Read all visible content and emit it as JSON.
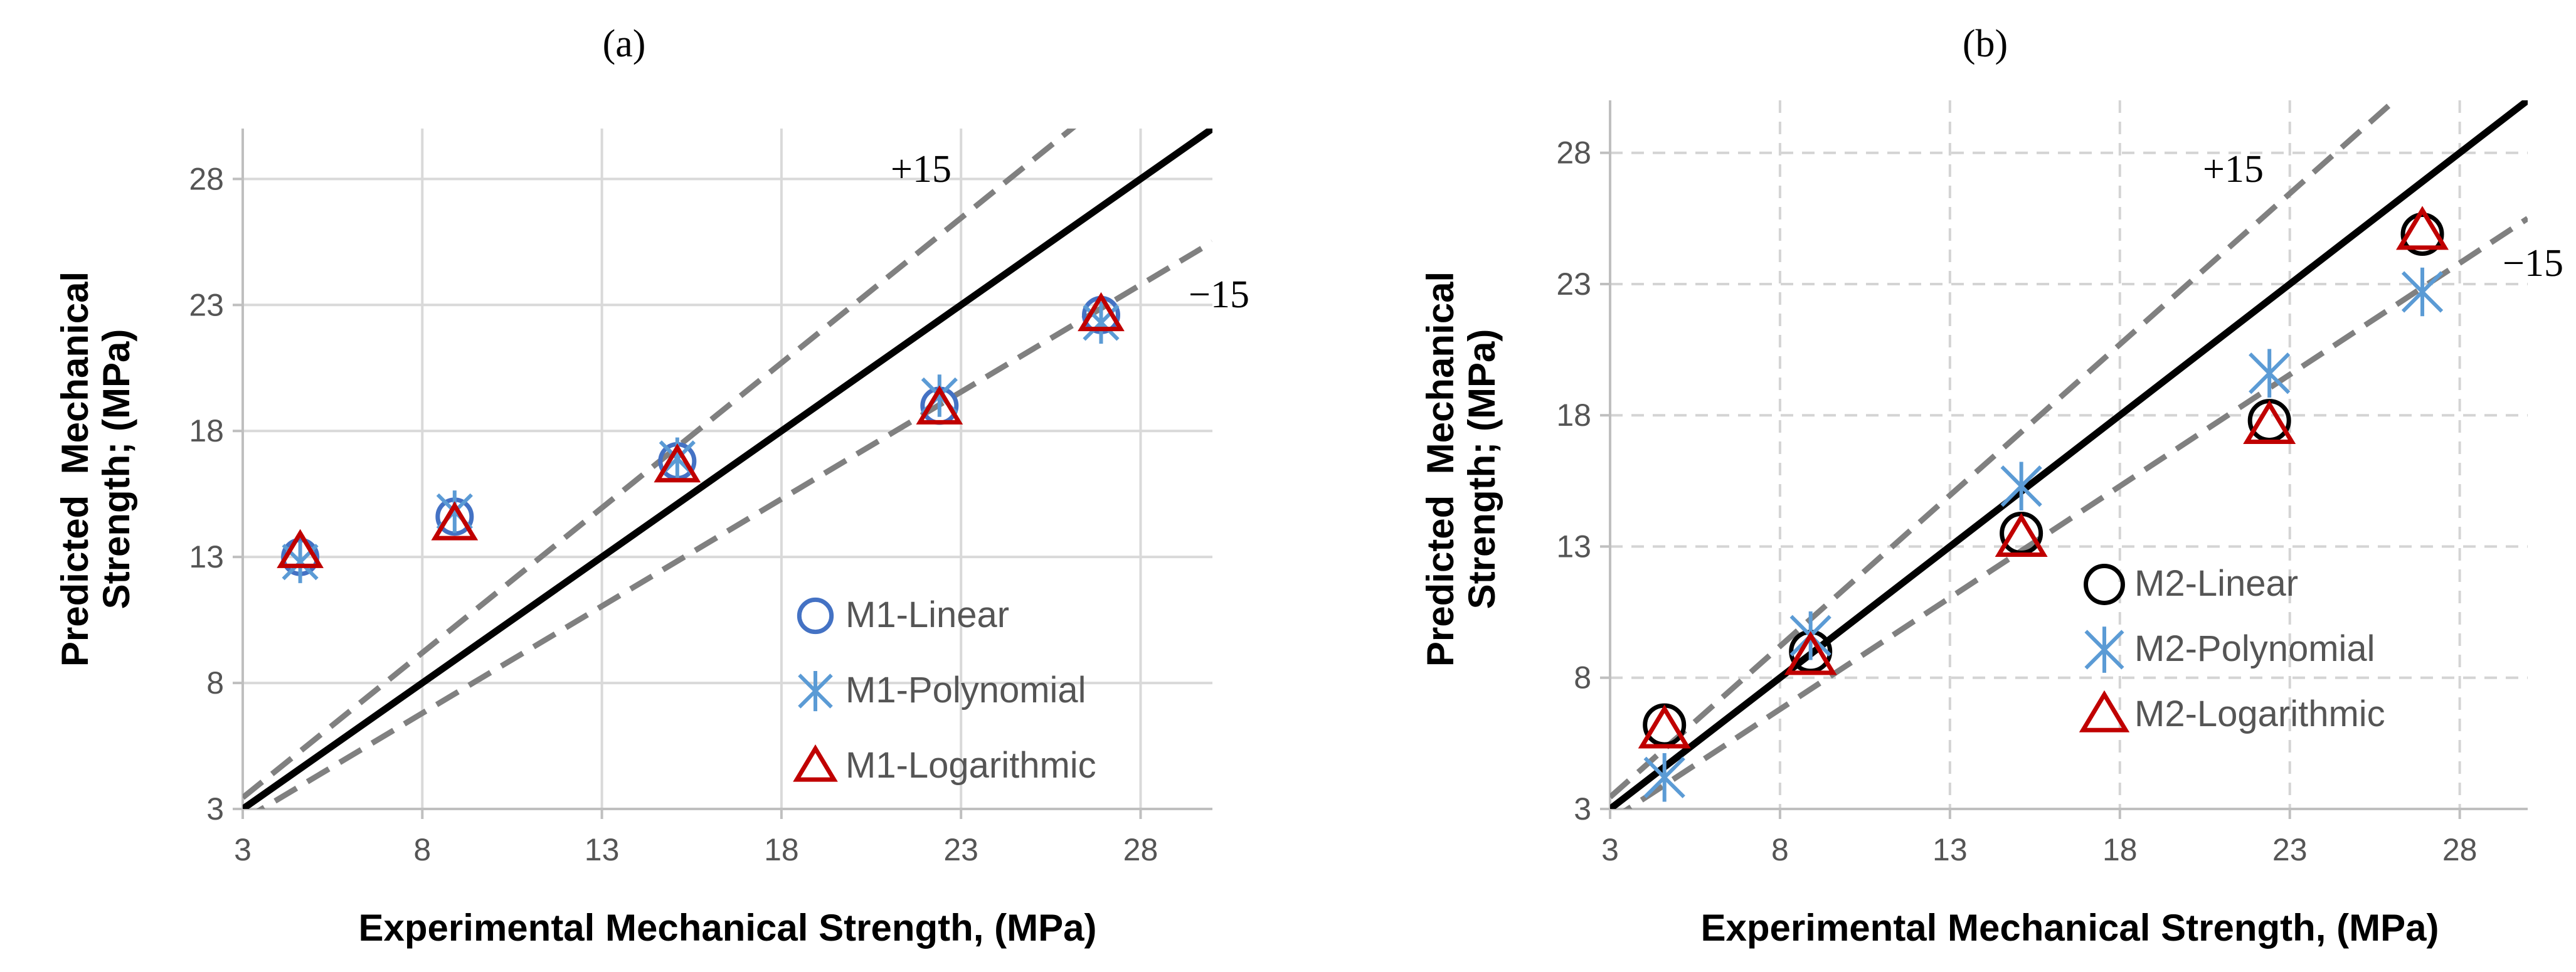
{
  "chart_data": [
    {
      "type": "scatter",
      "panel_label": "(a)",
      "xlabel": "Experimental Mechanical Strength, (MPa)",
      "ylabel_lines": [
        "Predicted  Mechanical",
        "Strength; (MPa)"
      ],
      "xlim": [
        3,
        30
      ],
      "ylim": [
        3,
        30
      ],
      "xticks": [
        3,
        8,
        13,
        18,
        23,
        28
      ],
      "yticks": [
        3,
        8,
        13,
        18,
        23,
        28
      ],
      "grid": "solid",
      "legend_position": "lower-right",
      "reference_lines": [
        {
          "name": "1:1",
          "slope": 1,
          "style": "solid",
          "color": "#000000"
        },
        {
          "name": "+15",
          "label": "+15",
          "slope": 1.15,
          "style": "dashed",
          "color": "#808080"
        },
        {
          "name": "-15",
          "label": "−15",
          "slope": 0.85,
          "style": "dashed",
          "color": "#808080"
        }
      ],
      "series": [
        {
          "name": "M1-Linear",
          "marker": "circle",
          "color": "#4472C4",
          "x": [
            4.6,
            8.9,
            15.1,
            22.4,
            26.9
          ],
          "y": [
            13.0,
            14.6,
            16.8,
            19.0,
            22.6
          ]
        },
        {
          "name": "M1-Polynomial",
          "marker": "asterisk",
          "color": "#5B9BD5",
          "x": [
            4.6,
            8.9,
            15.1,
            22.4,
            26.9
          ],
          "y": [
            12.8,
            14.8,
            16.9,
            19.4,
            22.3
          ]
        },
        {
          "name": "M1-Logarithmic",
          "marker": "triangle",
          "color": "#C00000",
          "x": [
            4.6,
            8.9,
            15.1,
            22.4,
            26.9
          ],
          "y": [
            13.2,
            14.3,
            16.6,
            18.9,
            22.6
          ]
        }
      ]
    },
    {
      "type": "scatter",
      "panel_label": "(b)",
      "xlabel": "Experimental Mechanical Strength, (MPa)",
      "ylabel_lines": [
        "Predicted  Mechanical",
        "Strength; (MPa)"
      ],
      "xlim": [
        3,
        30
      ],
      "ylim": [
        3,
        30
      ],
      "xticks": [
        3,
        8,
        13,
        18,
        23,
        28
      ],
      "yticks": [
        3,
        8,
        13,
        18,
        23,
        28
      ],
      "grid": "dashed",
      "legend_position": "lower-right",
      "reference_lines": [
        {
          "name": "1:1",
          "slope": 1,
          "style": "solid",
          "color": "#000000"
        },
        {
          "name": "+15",
          "label": "+15",
          "slope": 1.15,
          "style": "dashed",
          "color": "#808080"
        },
        {
          "name": "-15",
          "label": "−15",
          "slope": 0.85,
          "style": "dashed",
          "color": "#808080"
        }
      ],
      "series": [
        {
          "name": "M2-Linear",
          "marker": "circle",
          "color": "#000000",
          "x": [
            4.6,
            8.9,
            15.1,
            22.4,
            26.9
          ],
          "y": [
            6.2,
            9.0,
            13.5,
            17.8,
            24.9
          ]
        },
        {
          "name": "M2-Polynomial",
          "marker": "asterisk",
          "color": "#5B9BD5",
          "x": [
            4.6,
            8.9,
            15.1,
            22.4,
            26.9
          ],
          "y": [
            4.2,
            9.6,
            15.3,
            19.6,
            22.7
          ]
        },
        {
          "name": "M2-Logarithmic",
          "marker": "triangle",
          "color": "#C00000",
          "x": [
            4.6,
            8.9,
            15.1,
            22.4,
            26.9
          ],
          "y": [
            6.0,
            8.8,
            13.3,
            17.6,
            25.0
          ]
        }
      ]
    }
  ]
}
